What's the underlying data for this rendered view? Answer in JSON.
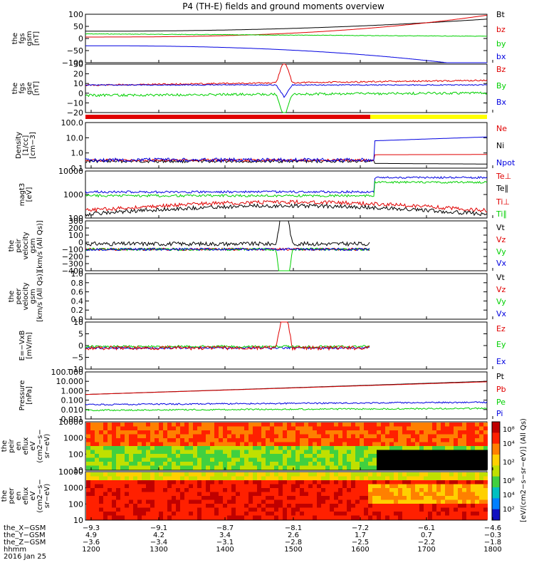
{
  "title": "P4 (TH-E) fields and ground moments overview",
  "colors": {
    "black": "#000000",
    "red": "#e00000",
    "green": "#00d000",
    "blue": "#0000e0",
    "yellow": "#ffff00"
  },
  "chart_data": [
    {
      "type": "line",
      "panel": "fgs_gsm",
      "ylabel": [
        "the",
        "fgs",
        "gsm",
        "[nT]"
      ],
      "ylim": [
        -100,
        100
      ],
      "yticks": [
        "100",
        "50",
        "0",
        "−50",
        "−100"
      ],
      "legend": [
        {
          "label": "Bt",
          "color": "black"
        },
        {
          "label": "bz",
          "color": "red"
        },
        {
          "label": "by",
          "color": "green"
        },
        {
          "label": "bx",
          "color": "blue"
        }
      ]
    },
    {
      "type": "line",
      "panel": "fgs_gse",
      "ylabel": [
        "the",
        "fgs",
        "gse",
        "[nT]"
      ],
      "ylim": [
        -25,
        30
      ],
      "yticks": [
        "30",
        "20",
        "10",
        "0",
        "−10",
        "−20"
      ],
      "legend": [
        {
          "label": "Bz",
          "color": "red"
        },
        {
          "label": "By",
          "color": "green"
        },
        {
          "label": "Bx",
          "color": "blue"
        }
      ]
    },
    {
      "type": "line",
      "panel": "density",
      "ylabel": [
        "Density",
        "[1/cc]",
        "[cm−3]"
      ],
      "scale": "log",
      "ylim": [
        0.1,
        100
      ],
      "yticks": [
        "100.0",
        "10.0",
        "1.0",
        "0.1"
      ],
      "legend": [
        {
          "label": "Ne",
          "color": "red"
        },
        {
          "label": "Ni",
          "color": "black"
        },
        {
          "label": "Npot",
          "color": "blue"
        }
      ]
    },
    {
      "type": "line",
      "panel": "temperature",
      "ylabel": [
        "magt3",
        "[eV]"
      ],
      "scale": "log",
      "ylim": [
        100,
        10000
      ],
      "yticks": [
        "10000",
        "1000",
        "100"
      ],
      "legend": [
        {
          "label": "Te⊥",
          "color": "red"
        },
        {
          "label": "Te∥",
          "color": "black"
        },
        {
          "label": "Ti⊥",
          "color": "red"
        },
        {
          "label": "Ti∥",
          "color": "green"
        }
      ]
    },
    {
      "type": "line",
      "panel": "peir_velocity",
      "ylabel": [
        "the",
        "peir",
        "velocity",
        "gsm",
        "[km/s (All Qs)]"
      ],
      "ylim": [
        -400,
        300
      ],
      "yticks": [
        "300",
        "200",
        "100",
        "0",
        "−100",
        "−200",
        "−300",
        "−400"
      ],
      "legend": [
        {
          "label": "Vt",
          "color": "black"
        },
        {
          "label": "Vz",
          "color": "red"
        },
        {
          "label": "Vy",
          "color": "green"
        },
        {
          "label": "Vx",
          "color": "blue"
        }
      ]
    },
    {
      "type": "line",
      "panel": "peer_velocity",
      "ylabel": [
        "the",
        "peer",
        "velocity",
        "gsm",
        "[km/s (All Qs)]"
      ],
      "ylim": [
        0,
        1
      ],
      "yticks": [
        "1.0",
        "0.8",
        "0.6",
        "0.4",
        "0.2",
        "0.0"
      ],
      "legend": [
        {
          "label": "Vt",
          "color": "black"
        },
        {
          "label": "Vz",
          "color": "red"
        },
        {
          "label": "Vy",
          "color": "green"
        },
        {
          "label": "Vx",
          "color": "blue"
        }
      ]
    },
    {
      "type": "line",
      "panel": "efield",
      "ylabel": [
        "E=−VxB",
        "[mV/m]"
      ],
      "ylim": [
        -10,
        10
      ],
      "yticks": [
        "10",
        "5",
        "0",
        "−5",
        "−10"
      ],
      "legend": [
        {
          "label": "Ez",
          "color": "red"
        },
        {
          "label": "Ey",
          "color": "green"
        },
        {
          "label": "Ex",
          "color": "blue"
        }
      ]
    },
    {
      "type": "line",
      "panel": "pressure",
      "ylabel": [
        "Pressure",
        "[nPa]"
      ],
      "scale": "log",
      "ylim": [
        0.001,
        100
      ],
      "yticks": [
        "100.000",
        "10.000",
        "1.000",
        "0.100",
        "0.010",
        "0.001"
      ],
      "legend": [
        {
          "label": "Pt",
          "color": "black"
        },
        {
          "label": "Pb",
          "color": "red"
        },
        {
          "label": "Pe",
          "color": "green"
        },
        {
          "label": "Pi",
          "color": "blue"
        }
      ]
    },
    {
      "type": "heatmap",
      "panel": "peir_eflux",
      "ylabel": [
        "the",
        "peir",
        "en",
        "eflux",
        "eV",
        "(cm2−s−",
        "sr−eV)"
      ],
      "scale": "log",
      "ylim": [
        10,
        10000
      ],
      "yticks": [
        "10000",
        "1000",
        "100",
        "10"
      ]
    },
    {
      "type": "heatmap",
      "panel": "peer_eflux",
      "ylabel": [
        "the",
        "peer",
        "en",
        "eflux",
        "eV",
        "(cm2−s−",
        "sr−eV)"
      ],
      "scale": "log",
      "ylim": [
        10,
        10000
      ],
      "yticks": [
        "10000",
        "1000",
        "100",
        "10"
      ]
    }
  ],
  "colorbar": {
    "ticks": [
      "10⁸",
      "10⁴",
      "10²"
    ],
    "label": "[eV/(cm2−s−sr−eV)] (All Qs)"
  },
  "xaxis": {
    "rows": [
      {
        "label": "the_X−GSM",
        "values": [
          "−9.3",
          "−9.1",
          "−8.7",
          "−8.1",
          "−7.2",
          "−6.1",
          "−4.6"
        ]
      },
      {
        "label": "the_Y−GSM",
        "values": [
          "4.9",
          "4.2",
          "3.4",
          "2.6",
          "1.7",
          "0.7",
          "−0.3"
        ]
      },
      {
        "label": "the_Z−GSM",
        "values": [
          "−3.6",
          "−3.4",
          "−3.1",
          "−2.8",
          "−2.5",
          "−2.2",
          "−1.8"
        ]
      },
      {
        "label": "hhmm",
        "values": [
          "1200",
          "1300",
          "1400",
          "1500",
          "1600",
          "1700",
          "1800"
        ]
      }
    ],
    "date": "2016 Jan 25"
  }
}
